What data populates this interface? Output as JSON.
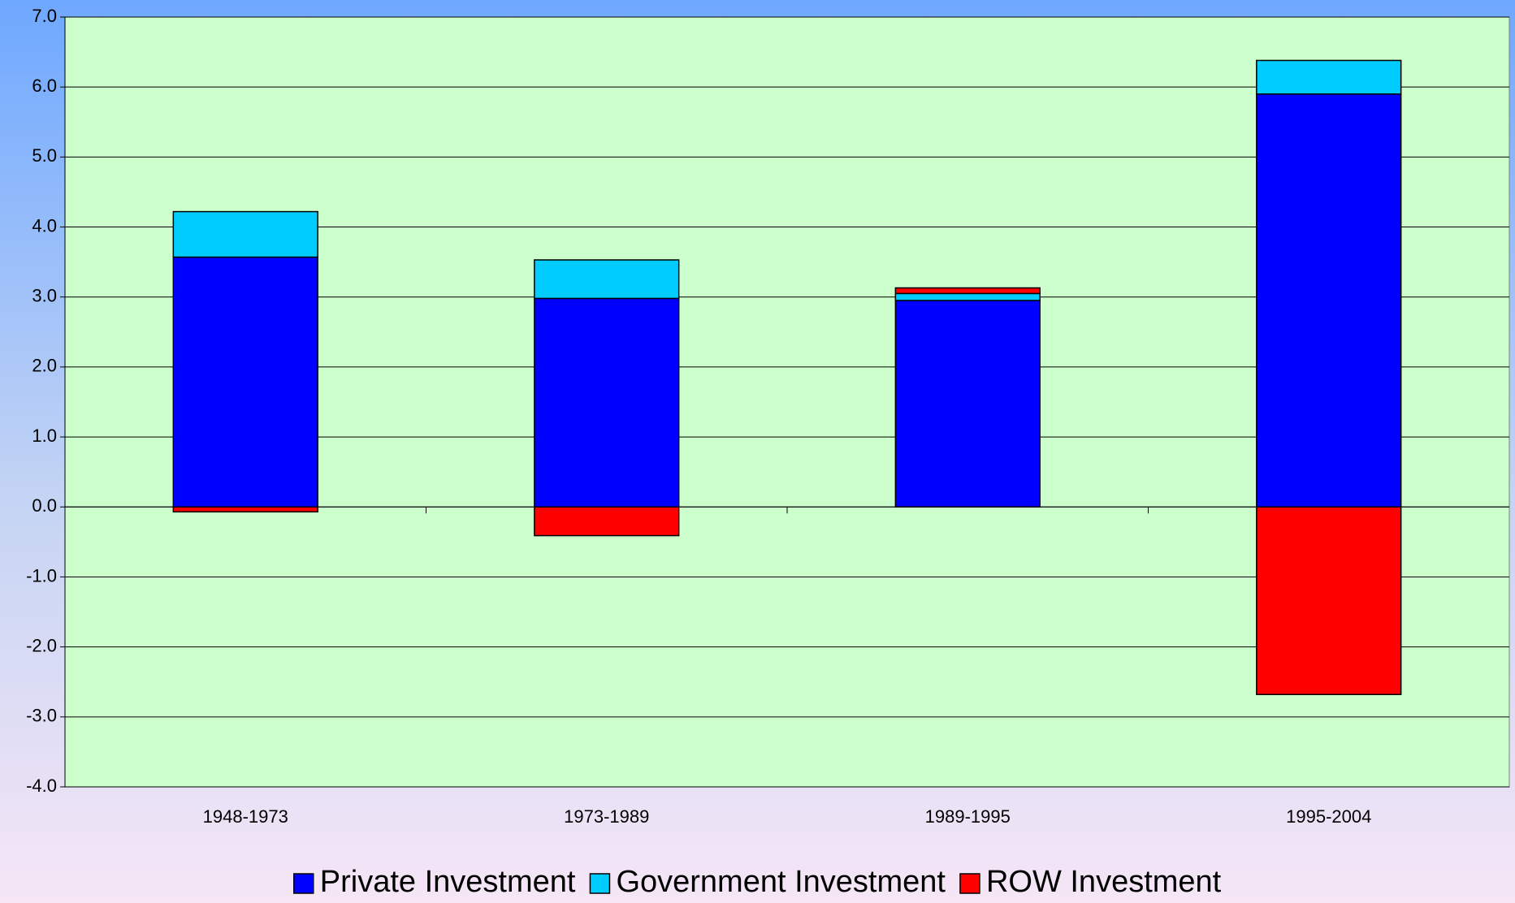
{
  "chart_data": {
    "type": "stacked_bar",
    "categories": [
      "1948-1973",
      "1973-1989",
      "1989-1995",
      "1995-2004"
    ],
    "series": [
      {
        "name": "Private Investment",
        "color": "#0000ff",
        "values": [
          3.57,
          2.98,
          2.95,
          5.9
        ]
      },
      {
        "name": "Government Investment",
        "color": "#00ccff",
        "values": [
          0.65,
          0.55,
          0.1,
          0.48
        ]
      },
      {
        "name": "ROW Investment",
        "color": "#ff0000",
        "values": [
          -0.07,
          -0.41,
          0.08,
          -2.68
        ]
      }
    ],
    "ylim": [
      -4,
      7
    ],
    "yticks": [
      {
        "value": -4,
        "label": "-4.0"
      },
      {
        "value": -3,
        "label": "-3.0"
      },
      {
        "value": -2,
        "label": "-2.0"
      },
      {
        "value": -1,
        "label": "-1.0"
      },
      {
        "value": 0,
        "label": "0.0"
      },
      {
        "value": 1,
        "label": "1.0"
      },
      {
        "value": 2,
        "label": "2.0"
      },
      {
        "value": 3,
        "label": "3.0"
      },
      {
        "value": 4,
        "label": "4.0"
      },
      {
        "value": 5,
        "label": "5.0"
      },
      {
        "value": 6,
        "label": "6.0"
      },
      {
        "value": 7,
        "label": "7.0"
      }
    ],
    "grid": true,
    "plot_background": "#ccffcc",
    "legend": "bottom"
  }
}
